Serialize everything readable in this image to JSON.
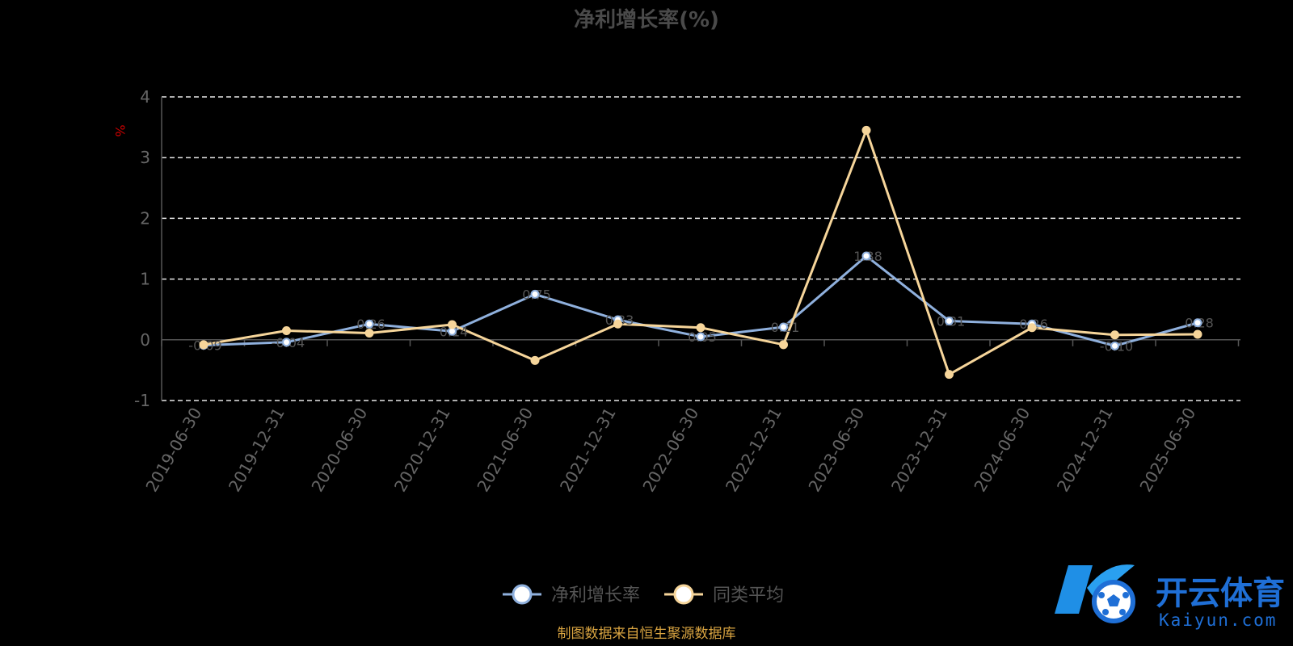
{
  "chart_data": {
    "type": "line",
    "title": "净利增长率(%)",
    "ylabel": "%",
    "xlabel": "",
    "categories": [
      "2019-06-30",
      "2019-12-31",
      "2020-06-30",
      "2020-12-31",
      "2021-06-30",
      "2021-12-31",
      "2022-06-30",
      "2022-12-31",
      "2023-06-30",
      "2023-12-31",
      "2024-06-30",
      "2024-12-31",
      "2025-06-30"
    ],
    "ylim": [
      -1,
      4
    ],
    "yticks": [
      -1,
      0,
      1,
      2,
      3,
      4
    ],
    "grid": true,
    "legend_position": "bottom-center",
    "series": [
      {
        "name": "净利增长率",
        "color": "#8fb0dd",
        "values": [
          -0.09,
          -0.04,
          0.26,
          0.14,
          0.75,
          0.33,
          0.05,
          0.21,
          1.38,
          0.31,
          0.26,
          -0.1,
          0.28
        ]
      },
      {
        "name": "同类平均",
        "color": "#f6d59a",
        "values": [
          -0.08,
          0.15,
          0.11,
          0.25,
          -0.34,
          0.26,
          0.2,
          -0.08,
          3.45,
          -0.57,
          0.2,
          0.08,
          0.09
        ]
      }
    ]
  },
  "footer": {
    "source": "制图数据来自恒生聚源数据库"
  },
  "watermark": {
    "text_cn": "开云体育",
    "text_en": "Kaiyun.com",
    "icon": "soccer-ball-logo",
    "color": "#1f6fd6"
  }
}
